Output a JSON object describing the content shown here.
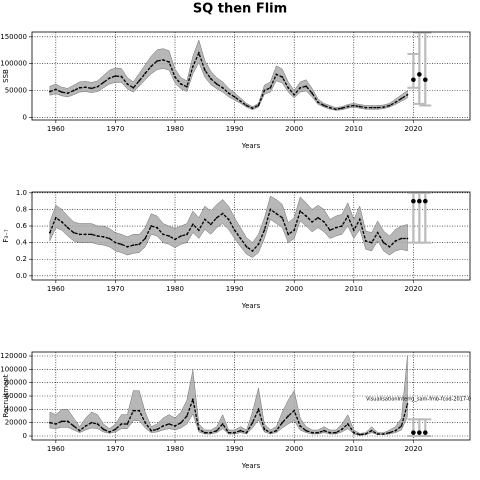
{
  "title": "SQ then Flim",
  "chart_data": [
    {
      "type": "line",
      "xlabel": "Years",
      "ylabel": "SSB",
      "xlim": [
        1956,
        2029.5
      ],
      "xticks": [
        1960,
        1970,
        1980,
        1990,
        2000,
        2010,
        2020
      ],
      "ylim": [
        -5000,
        159000
      ],
      "yticks": [
        0,
        50000,
        100000,
        150000
      ],
      "grid": true,
      "x": [
        1959,
        1960,
        1961,
        1962,
        1963,
        1964,
        1965,
        1966,
        1967,
        1968,
        1969,
        1970,
        1971,
        1972,
        1973,
        1974,
        1975,
        1976,
        1977,
        1978,
        1979,
        1980,
        1981,
        1982,
        1983,
        1984,
        1985,
        1986,
        1987,
        1988,
        1989,
        1990,
        1991,
        1992,
        1993,
        1994,
        1995,
        1996,
        1997,
        1998,
        1999,
        2000,
        2001,
        2002,
        2003,
        2004,
        2005,
        2006,
        2007,
        2008,
        2009,
        2010,
        2011,
        2012,
        2013,
        2014,
        2015,
        2016,
        2017,
        2018,
        2019
      ],
      "series": [
        {
          "color": "#000000",
          "band_color": "#aaaaaa",
          "values": [
            48000,
            52000,
            47000,
            45000,
            50000,
            55000,
            56000,
            54000,
            57000,
            65000,
            73000,
            77000,
            76000,
            62000,
            55000,
            68000,
            82000,
            95000,
            105000,
            107000,
            103000,
            75000,
            62000,
            57000,
            95000,
            120000,
            88000,
            72000,
            62000,
            55000,
            45000,
            38000,
            30000,
            22000,
            17000,
            22000,
            50000,
            55000,
            80000,
            75000,
            55000,
            42000,
            55000,
            58000,
            45000,
            28000,
            22000,
            18000,
            15000,
            17000,
            20000,
            22000,
            20000,
            18000,
            18000,
            18000,
            19000,
            22000,
            28000,
            35000,
            42000
          ],
          "lower": [
            41000,
            44000,
            40000,
            38000,
            42000,
            47000,
            48000,
            46000,
            48000,
            55000,
            62000,
            65000,
            65000,
            53000,
            47000,
            58000,
            70000,
            81000,
            89000,
            91000,
            88000,
            64000,
            53000,
            48000,
            81000,
            102000,
            75000,
            61000,
            53000,
            47000,
            38000,
            32000,
            26000,
            19000,
            14000,
            19000,
            43000,
            47000,
            68000,
            64000,
            47000,
            36000,
            47000,
            49000,
            38000,
            24000,
            19000,
            15000,
            13000,
            14000,
            17000,
            19000,
            17000,
            15000,
            15000,
            15000,
            16000,
            19000,
            24000,
            30000,
            36000
          ],
          "upper": [
            58000,
            62000,
            56000,
            54000,
            60000,
            66000,
            67000,
            65000,
            68000,
            78000,
            88000,
            92000,
            91000,
            74000,
            66000,
            82000,
            98000,
            114000,
            126000,
            128000,
            124000,
            90000,
            74000,
            68000,
            114000,
            144000,
            106000,
            86000,
            74000,
            66000,
            54000,
            46000,
            36000,
            26000,
            20000,
            26000,
            60000,
            66000,
            96000,
            90000,
            66000,
            50000,
            66000,
            70000,
            54000,
            34000,
            26000,
            22000,
            18000,
            20000,
            24000,
            26000,
            24000,
            22000,
            22000,
            22000,
            23000,
            26000,
            34000,
            42000,
            50000
          ]
        }
      ],
      "projection": {
        "color": "#000000",
        "bar_color": "#bbbbbb",
        "x": [
          2020,
          2021,
          2022
        ],
        "values": [
          70000,
          80000,
          70000
        ],
        "lower": [
          55000,
          25000,
          22000
        ],
        "upper": [
          118000,
          158000,
          158000
        ]
      }
    },
    {
      "type": "line",
      "xlabel": "Years",
      "ylabel": "F₃₋₇",
      "xlim": [
        1956,
        2029.5
      ],
      "xticks": [
        1960,
        1970,
        1980,
        1990,
        2000,
        2010,
        2020
      ],
      "ylim": [
        -0.05,
        1.01
      ],
      "yticks": [
        {
          "value": 0,
          "label": "0.0"
        },
        0.2,
        0.4,
        0.6,
        0.8,
        {
          "value": 1,
          "label": "1.0"
        }
      ],
      "grid": true,
      "x": [
        1959,
        1960,
        1961,
        1962,
        1963,
        1964,
        1965,
        1966,
        1967,
        1968,
        1969,
        1970,
        1971,
        1972,
        1973,
        1974,
        1975,
        1976,
        1977,
        1978,
        1979,
        1980,
        1981,
        1982,
        1983,
        1984,
        1985,
        1986,
        1987,
        1988,
        1989,
        1990,
        1991,
        1992,
        1993,
        1994,
        1995,
        1996,
        1997,
        1998,
        1999,
        2000,
        2001,
        2002,
        2003,
        2004,
        2005,
        2006,
        2007,
        2008,
        2009,
        2010,
        2011,
        2012,
        2013,
        2014,
        2015,
        2016,
        2017,
        2018,
        2019
      ],
      "series": [
        {
          "color": "#000000",
          "band_color": "#aaaaaa",
          "values": [
            0.52,
            0.7,
            0.65,
            0.58,
            0.52,
            0.5,
            0.5,
            0.5,
            0.48,
            0.47,
            0.45,
            0.4,
            0.38,
            0.35,
            0.37,
            0.38,
            0.45,
            0.6,
            0.58,
            0.5,
            0.48,
            0.44,
            0.48,
            0.5,
            0.62,
            0.55,
            0.68,
            0.62,
            0.7,
            0.75,
            0.68,
            0.55,
            0.45,
            0.35,
            0.3,
            0.38,
            0.55,
            0.8,
            0.75,
            0.7,
            0.5,
            0.55,
            0.78,
            0.72,
            0.65,
            0.7,
            0.65,
            0.55,
            0.58,
            0.6,
            0.72,
            0.55,
            0.68,
            0.42,
            0.4,
            0.52,
            0.4,
            0.35,
            0.42,
            0.45,
            0.45
          ],
          "lower": [
            0.42,
            0.58,
            0.55,
            0.48,
            0.42,
            0.4,
            0.4,
            0.4,
            0.38,
            0.37,
            0.35,
            0.3,
            0.28,
            0.25,
            0.27,
            0.28,
            0.35,
            0.5,
            0.48,
            0.4,
            0.38,
            0.34,
            0.38,
            0.4,
            0.52,
            0.45,
            0.56,
            0.5,
            0.58,
            0.63,
            0.56,
            0.45,
            0.35,
            0.26,
            0.22,
            0.28,
            0.45,
            0.68,
            0.63,
            0.58,
            0.4,
            0.45,
            0.66,
            0.6,
            0.53,
            0.58,
            0.53,
            0.45,
            0.48,
            0.5,
            0.6,
            0.45,
            0.56,
            0.32,
            0.3,
            0.42,
            0.3,
            0.25,
            0.3,
            0.32,
            0.3
          ],
          "upper": [
            0.65,
            0.85,
            0.8,
            0.72,
            0.65,
            0.63,
            0.63,
            0.63,
            0.6,
            0.6,
            0.57,
            0.52,
            0.5,
            0.47,
            0.5,
            0.5,
            0.58,
            0.75,
            0.72,
            0.63,
            0.6,
            0.57,
            0.6,
            0.63,
            0.78,
            0.7,
            0.84,
            0.78,
            0.86,
            0.92,
            0.84,
            0.7,
            0.58,
            0.46,
            0.4,
            0.5,
            0.7,
            0.96,
            0.92,
            0.86,
            0.64,
            0.7,
            0.95,
            0.88,
            0.8,
            0.85,
            0.8,
            0.68,
            0.72,
            0.74,
            0.88,
            0.68,
            0.84,
            0.54,
            0.52,
            0.66,
            0.54,
            0.48,
            0.56,
            0.6,
            0.62
          ]
        }
      ],
      "projection": {
        "color": "#000000",
        "bar_color": "#bbbbbb",
        "x": [
          2020,
          2021,
          2022
        ],
        "values": [
          0.9,
          0.9,
          0.9
        ],
        "lower": [
          0.4,
          0.4,
          0.4
        ],
        "upper": [
          1.0,
          1.0,
          1.0
        ]
      }
    },
    {
      "type": "line",
      "xlabel": "Years",
      "ylabel": "Recruitment",
      "annotation": "VisualisationInterrg_sam-fmb-fcod-2017-0",
      "xlim": [
        1956,
        2029.5
      ],
      "xticks": [
        1960,
        1970,
        1980,
        1990,
        2000,
        2010,
        2020
      ],
      "ylim": [
        -6000,
        126000
      ],
      "yticks": [
        0,
        20000,
        40000,
        60000,
        80000,
        100000,
        120000
      ],
      "grid": true,
      "x": [
        1959,
        1960,
        1961,
        1962,
        1963,
        1964,
        1965,
        1966,
        1967,
        1968,
        1969,
        1970,
        1971,
        1972,
        1973,
        1974,
        1975,
        1976,
        1977,
        1978,
        1979,
        1980,
        1981,
        1982,
        1983,
        1984,
        1985,
        1986,
        1987,
        1988,
        1989,
        1990,
        1991,
        1992,
        1993,
        1994,
        1995,
        1996,
        1997,
        1998,
        1999,
        2000,
        2001,
        2002,
        2003,
        2004,
        2005,
        2006,
        2007,
        2008,
        2009,
        2010,
        2011,
        2012,
        2013,
        2014,
        2015,
        2016,
        2017,
        2018,
        2019
      ],
      "series": [
        {
          "color": "#000000",
          "band_color": "#aaaaaa",
          "values": [
            20000,
            18000,
            22000,
            22000,
            15000,
            8000,
            15000,
            20000,
            18000,
            10000,
            6000,
            10000,
            18000,
            18000,
            38000,
            38000,
            20000,
            8000,
            10000,
            15000,
            18000,
            15000,
            20000,
            30000,
            55000,
            10000,
            5000,
            5000,
            8000,
            18000,
            5000,
            5000,
            8000,
            5000,
            20000,
            40000,
            10000,
            5000,
            8000,
            20000,
            30000,
            38000,
            15000,
            8000,
            5000,
            5000,
            8000,
            5000,
            5000,
            10000,
            18000,
            5000,
            2000,
            3000,
            8000,
            3000,
            3000,
            5000,
            8000,
            15000,
            48000
          ],
          "lower": [
            12000,
            11000,
            13000,
            13000,
            9000,
            5000,
            9000,
            12000,
            11000,
            6000,
            4000,
            6000,
            11000,
            11000,
            23000,
            23000,
            12000,
            5000,
            6000,
            9000,
            11000,
            9000,
            12000,
            18000,
            33000,
            6000,
            3000,
            3000,
            5000,
            11000,
            3000,
            3000,
            5000,
            3000,
            12000,
            24000,
            6000,
            3000,
            5000,
            12000,
            18000,
            23000,
            9000,
            5000,
            3000,
            3000,
            5000,
            3000,
            3000,
            6000,
            11000,
            3000,
            1000,
            2000,
            5000,
            2000,
            2000,
            3000,
            5000,
            9000,
            29000
          ],
          "upper": [
            36000,
            32000,
            40000,
            40000,
            27000,
            14000,
            27000,
            36000,
            32000,
            18000,
            11000,
            18000,
            32000,
            32000,
            68000,
            68000,
            36000,
            14000,
            18000,
            27000,
            32000,
            27000,
            36000,
            54000,
            99000,
            18000,
            9000,
            9000,
            14000,
            32000,
            9000,
            9000,
            14000,
            9000,
            36000,
            72000,
            18000,
            9000,
            14000,
            36000,
            54000,
            68000,
            27000,
            14000,
            9000,
            9000,
            14000,
            9000,
            9000,
            18000,
            32000,
            9000,
            4000,
            5000,
            14000,
            5000,
            5000,
            9000,
            14000,
            27000,
            120000
          ]
        }
      ],
      "projection": {
        "color": "#000000",
        "bar_color": "#bbbbbb",
        "x": [
          2020,
          2021,
          2022
        ],
        "values": [
          5000,
          5000,
          5000
        ],
        "lower": [
          0,
          0,
          0
        ],
        "upper": [
          25000,
          25000,
          25000
        ]
      }
    }
  ]
}
